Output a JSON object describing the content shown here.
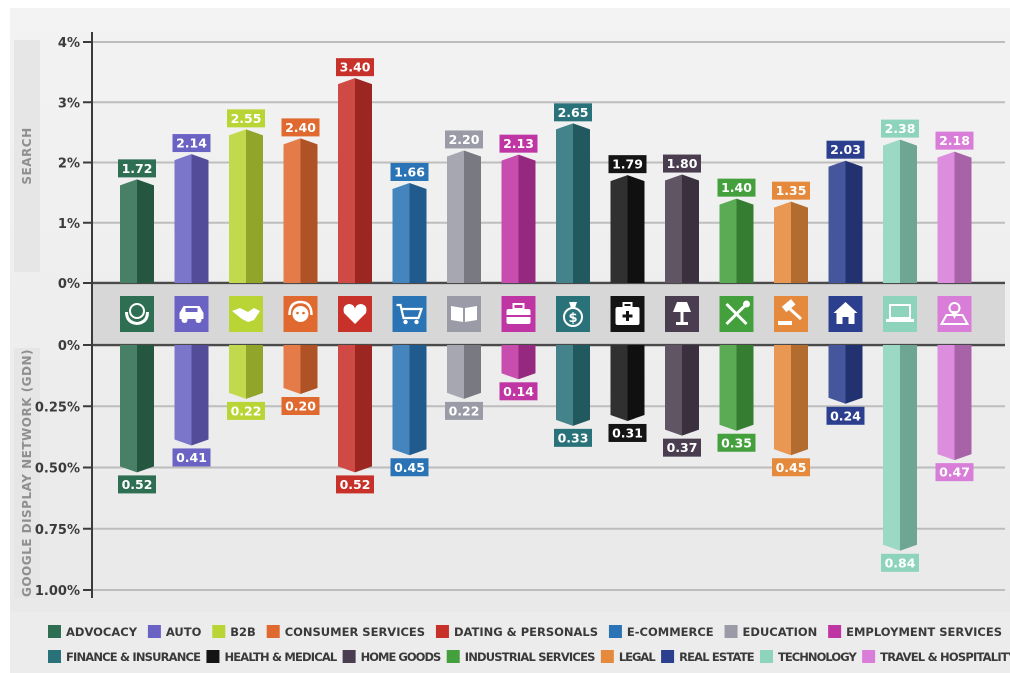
{
  "chart_data": {
    "type": "bar",
    "categories": [
      "ADVOCACY",
      "AUTO",
      "B2B",
      "CONSUMER SERVICES",
      "DATING & PERSONALS",
      "E-COMMERCE",
      "EDUCATION",
      "EMPLOYMENT SERVICES",
      "FINANCE & INSURANCE",
      "HEALTH & MEDICAL",
      "HOME GOODS",
      "INDUSTRIAL SERVICES",
      "LEGAL",
      "REAL ESTATE",
      "TECHNOLOGY",
      "TRAVEL & HOSPITALITY"
    ],
    "colors": [
      "#2e6e52",
      "#6a63c4",
      "#b8d435",
      "#e0692f",
      "#c8312a",
      "#2a74b5",
      "#9a9ba6",
      "#bf35a3",
      "#2a727a",
      "#141414",
      "#4a3d50",
      "#44a03d",
      "#e58a3c",
      "#2c3f8f",
      "#8ed4bd",
      "#d87ed8"
    ],
    "icons": [
      "globe-hands-icon",
      "car-icon",
      "handshake-icon",
      "headset-agent-icon",
      "heart-icon",
      "shopping-cart-icon",
      "open-book-icon",
      "briefcase-icon",
      "money-bag-icon",
      "first-aid-kit-icon",
      "lamp-icon",
      "tools-icon",
      "gavel-icon",
      "house-icon",
      "laptop-icon",
      "map-pin-icon"
    ],
    "series": [
      {
        "name": "SEARCH",
        "values": [
          1.72,
          2.14,
          2.55,
          2.4,
          3.4,
          1.66,
          2.2,
          2.13,
          2.65,
          1.79,
          1.8,
          1.4,
          1.35,
          2.03,
          2.38,
          2.18
        ]
      },
      {
        "name": "GOOGLE DISPLAY NETWORK (GDN)",
        "values": [
          0.52,
          0.41,
          0.22,
          0.2,
          0.52,
          0.45,
          0.22,
          0.14,
          0.33,
          0.31,
          0.37,
          0.35,
          0.45,
          0.24,
          0.84,
          0.47
        ]
      }
    ],
    "value_labels": {
      "search": [
        "1.72",
        "2.14",
        "2.55",
        "2.40",
        "3.40",
        "1.66",
        "2.20",
        "2.13",
        "2.65",
        "1.79",
        "1.80",
        "1.40",
        "1.35",
        "2.03",
        "2.38",
        "2.18"
      ],
      "gdn": [
        "0.52",
        "0.41",
        "0.22",
        "0.20",
        "0.52",
        "0.45",
        "0.22",
        "0.14",
        "0.33",
        "0.31",
        "0.37",
        "0.35",
        "0.45",
        "0.24",
        "0.84",
        "0.47"
      ]
    },
    "search_axis": {
      "label": "SEARCH",
      "ticks": [
        "0%",
        "1%",
        "2%",
        "3%",
        "4%"
      ],
      "ylim": [
        0,
        4
      ]
    },
    "gdn_axis": {
      "label": "GOOGLE DISPLAY NETWORK (GDN)",
      "ticks": [
        "0%",
        "0.25%",
        "0.50%",
        "0.75%",
        "1.00%"
      ],
      "ylim": [
        0,
        1.0
      ]
    },
    "grid": true,
    "legend_position": "bottom"
  }
}
